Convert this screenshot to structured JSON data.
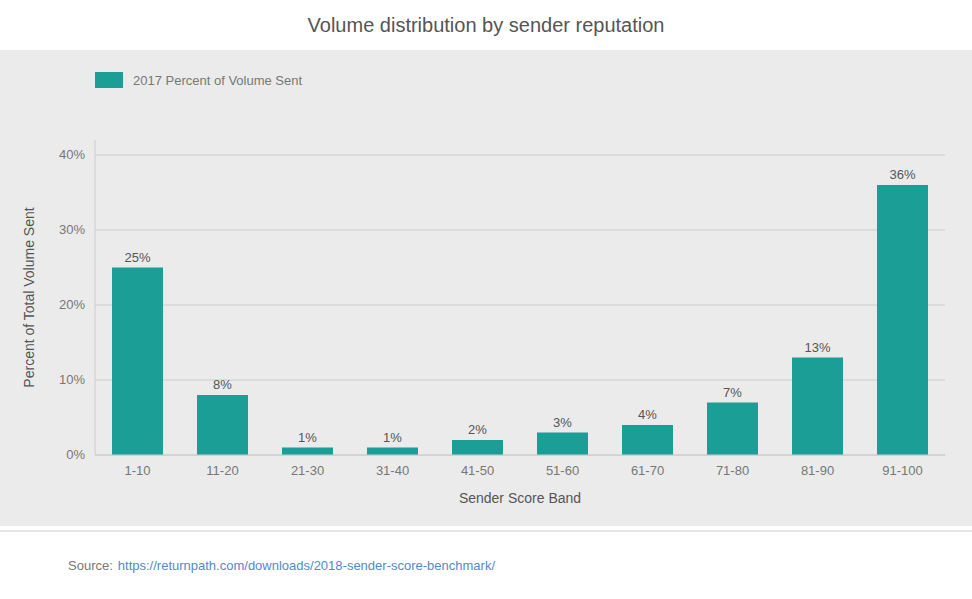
{
  "chart_data": {
    "type": "bar",
    "title": "Volume distribution by sender reputation",
    "xlabel": "Sender Score Band",
    "ylabel": "Percent of Total Volume Sent",
    "categories": [
      "1-10",
      "11-20",
      "21-30",
      "31-40",
      "41-50",
      "51-60",
      "61-70",
      "71-80",
      "81-90",
      "91-100"
    ],
    "series": [
      {
        "name": "2017 Percent of Volume Sent",
        "color": "#1a9e96",
        "values": [
          25,
          8,
          1,
          1,
          2,
          3,
          4,
          7,
          13,
          36
        ],
        "value_labels": [
          "25%",
          "8%",
          "1%",
          "1%",
          "2%",
          "3%",
          "4%",
          "7%",
          "13%",
          "36%"
        ]
      }
    ],
    "ylim": [
      0,
      42
    ],
    "yticks": [
      {
        "value": 0,
        "label": "0%"
      },
      {
        "value": 10,
        "label": "10%"
      },
      {
        "value": 20,
        "label": "20%"
      },
      {
        "value": 30,
        "label": "30%"
      },
      {
        "value": 40,
        "label": "40%"
      }
    ],
    "grid": true,
    "legend": "upper left",
    "data_labels": true,
    "annotations": [
      "Source:",
      "https://returnpath.com/downloads/2018-sender-score-benchmark/"
    ]
  }
}
